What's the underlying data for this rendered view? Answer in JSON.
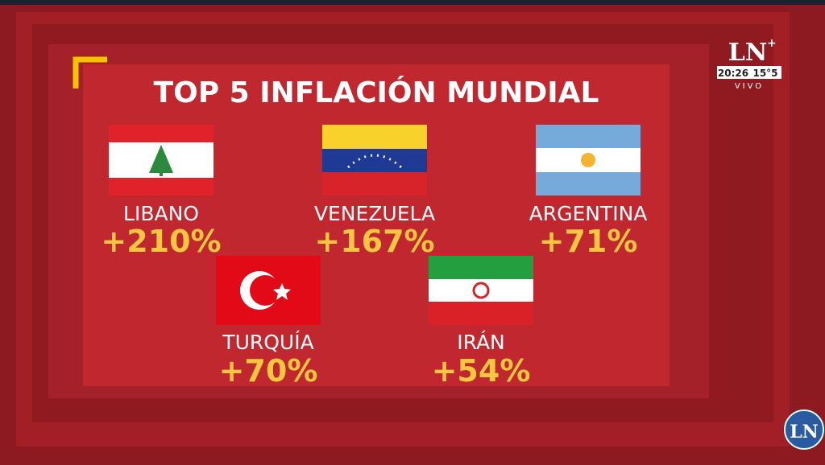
{
  "title": "TOP 5 INFLACIÓN MUNDIAL",
  "items": [
    {
      "country": "LIBANO",
      "value": "+210%"
    },
    {
      "country": "VENEZUELA",
      "value": "+167%"
    },
    {
      "country": "ARGENTINA",
      "value": "+71%"
    },
    {
      "country": "TURQUÍA",
      "value": "+70%"
    },
    {
      "country": "IRÁN",
      "value": "+54%"
    }
  ],
  "channel": {
    "logo": "LN",
    "time": "20:26",
    "temperature": "15°5",
    "live": "VIVO",
    "corner_logo": "LN"
  }
}
